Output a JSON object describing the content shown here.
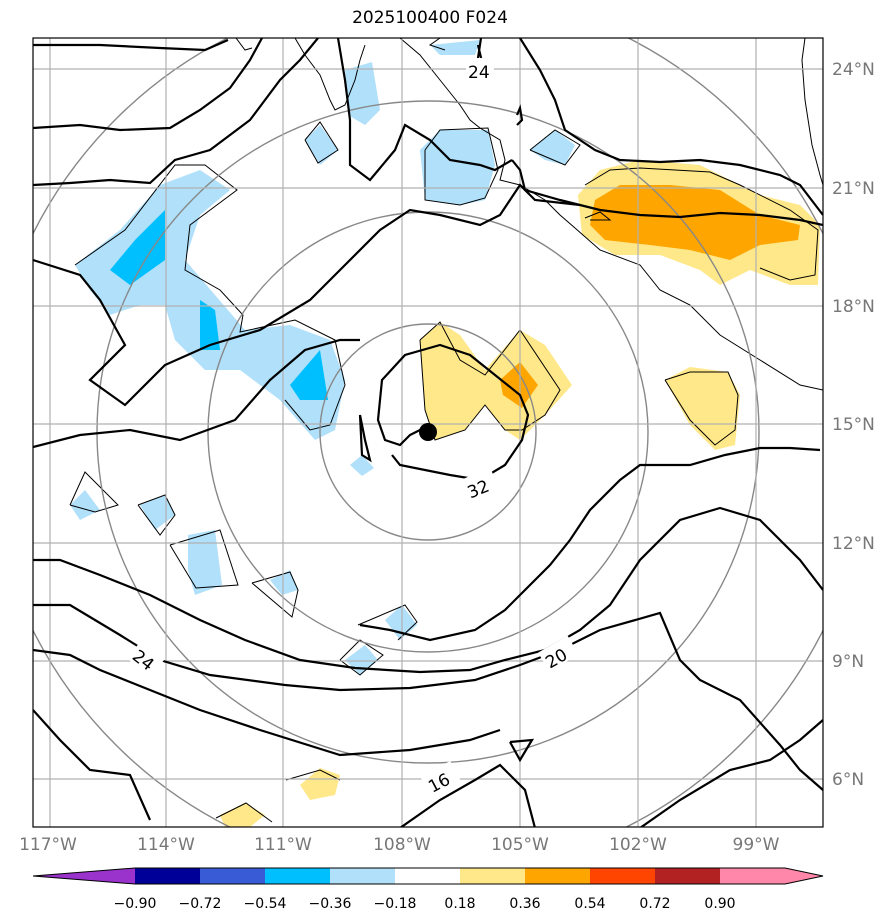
{
  "title": "2025100400 F024",
  "lat_ticks": [
    "24°N",
    "21°N",
    "18°N",
    "15°N",
    "12°N",
    "9°N",
    "6°N"
  ],
  "lon_ticks": [
    "117°W",
    "114°W",
    "111°W",
    "108°W",
    "105°W",
    "102°W",
    "99°W"
  ],
  "contour_labels": [
    "24",
    "32",
    "24",
    "20",
    "16"
  ],
  "colorbar": {
    "colors": [
      "#9933cc",
      "#000099",
      "#3a5bd6",
      "#00bfff",
      "#b0e0fa",
      "#ffffff",
      "#ffe88a",
      "#ffa500",
      "#ff4500",
      "#b22222",
      "#ff88aa"
    ],
    "labels": [
      "−0.90",
      "−0.72",
      "−0.54",
      "−0.36",
      "−0.18",
      "0.18",
      "0.36",
      "0.54",
      "0.72",
      "0.90"
    ]
  },
  "storm_center": {
    "lat": 14.8,
    "lon": "107.3°W"
  }
}
